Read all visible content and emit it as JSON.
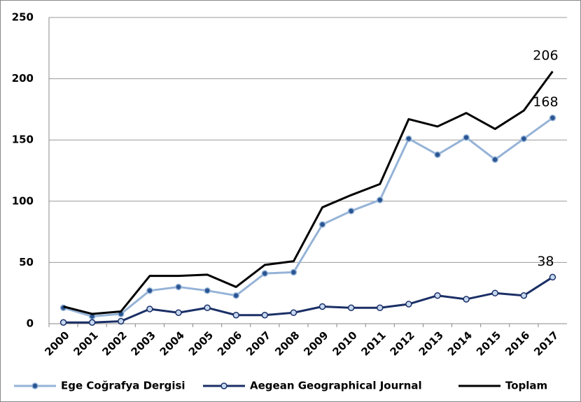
{
  "chart_data": {
    "type": "line",
    "categories": [
      "2000",
      "2001",
      "2002",
      "2003",
      "2004",
      "2005",
      "2006",
      "2007",
      "2008",
      "2009",
      "2010",
      "2011",
      "2012",
      "2013",
      "2014",
      "2015",
      "2016",
      "2017"
    ],
    "series": [
      {
        "name": "Ege Coğrafya Dergisi",
        "color": "#95b3d7",
        "marker_color": "#2a5592",
        "values": [
          13,
          6,
          8,
          27,
          30,
          27,
          23,
          41,
          42,
          81,
          92,
          101,
          151,
          138,
          152,
          134,
          151,
          168
        ]
      },
      {
        "name": "Aegean Geographical Journal",
        "color": "#1a2f66",
        "marker_color": "#c6d9f1",
        "values": [
          1,
          1,
          2,
          12,
          9,
          13,
          7,
          7,
          9,
          14,
          13,
          13,
          16,
          23,
          20,
          25,
          23,
          38
        ]
      },
      {
        "name": "Toplam",
        "color": "#000000",
        "markers": false,
        "values": [
          14,
          8,
          10,
          39,
          39,
          40,
          30,
          48,
          51,
          95,
          105,
          114,
          167,
          161,
          172,
          159,
          174,
          206
        ]
      }
    ],
    "data_labels": "last",
    "ylim": [
      0,
      250
    ],
    "yticks": [
      0,
      50,
      100,
      150,
      200,
      250
    ],
    "grid": true,
    "legend": "bottom"
  }
}
